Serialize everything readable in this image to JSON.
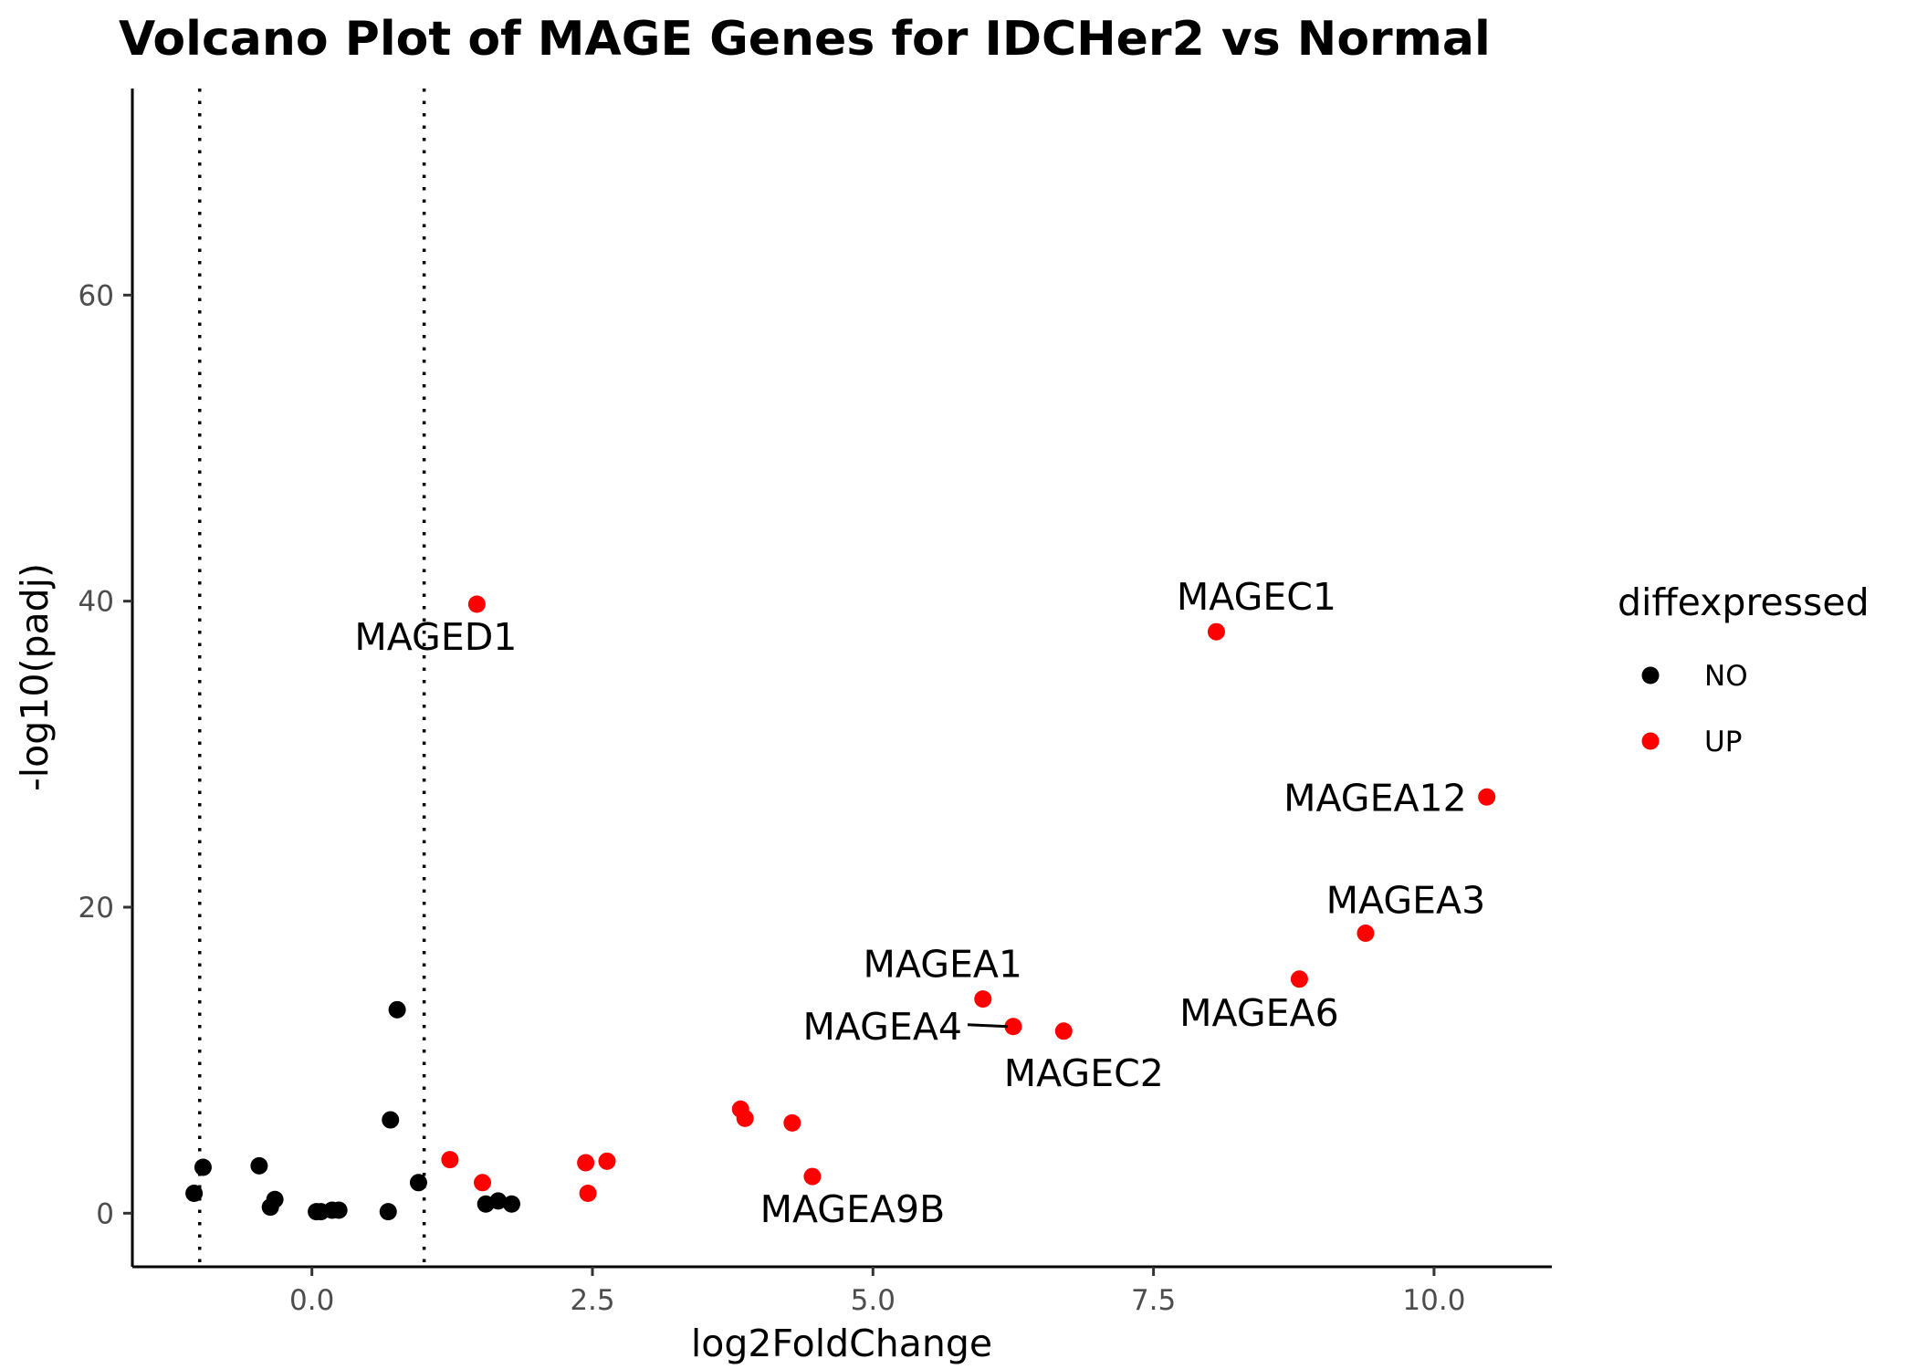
{
  "chart_data": {
    "type": "scatter",
    "title": "Volcano Plot of MAGE Genes for IDCHer2 vs Normal",
    "xlabel": "log2FoldChange",
    "ylabel": "-log10(padj)",
    "xlim": [
      -1.6,
      11.05
    ],
    "ylim": [
      -3.5,
      73.5
    ],
    "x_ticks": [
      0.0,
      2.5,
      5.0,
      7.5,
      10.0
    ],
    "x_tick_labels": [
      "0.0",
      "2.5",
      "5.0",
      "7.5",
      "10.0"
    ],
    "y_ticks": [
      0,
      20,
      40,
      60
    ],
    "y_tick_labels": [
      "0",
      "20",
      "40",
      "60"
    ],
    "vlines": [
      -1,
      1
    ],
    "grid": false,
    "legend": {
      "title": "diffexpressed",
      "position": "right",
      "entries": [
        {
          "label": "NO",
          "color": "#000000"
        },
        {
          "label": "UP",
          "color": "#ff0000"
        }
      ]
    },
    "series": [
      {
        "name": "NO",
        "color": "#000000",
        "points": [
          {
            "x": -1.05,
            "y": 1.3
          },
          {
            "x": -0.97,
            "y": 3.0
          },
          {
            "x": -0.47,
            "y": 3.1
          },
          {
            "x": -0.37,
            "y": 0.4
          },
          {
            "x": -0.33,
            "y": 0.9
          },
          {
            "x": 0.04,
            "y": 0.1
          },
          {
            "x": 0.08,
            "y": 0.1
          },
          {
            "x": 0.18,
            "y": 0.2
          },
          {
            "x": 0.24,
            "y": 0.2
          },
          {
            "x": 0.68,
            "y": 0.1
          },
          {
            "x": 0.7,
            "y": 6.1
          },
          {
            "x": 0.76,
            "y": 13.3
          },
          {
            "x": 0.95,
            "y": 2.0
          },
          {
            "x": 1.55,
            "y": 0.6
          },
          {
            "x": 1.66,
            "y": 0.8
          },
          {
            "x": 1.78,
            "y": 0.6
          }
        ]
      },
      {
        "name": "UP",
        "color": "#ff0000",
        "points": [
          {
            "x": 1.23,
            "y": 3.5,
            "label": ""
          },
          {
            "x": 1.47,
            "y": 39.8,
            "label": "MAGED1"
          },
          {
            "x": 1.52,
            "y": 2.0,
            "label": ""
          },
          {
            "x": 2.44,
            "y": 3.3,
            "label": ""
          },
          {
            "x": 2.46,
            "y": 1.3,
            "label": ""
          },
          {
            "x": 2.63,
            "y": 3.4,
            "label": ""
          },
          {
            "x": 3.82,
            "y": 6.8,
            "label": ""
          },
          {
            "x": 3.86,
            "y": 6.2,
            "label": ""
          },
          {
            "x": 4.28,
            "y": 5.9,
            "label": ""
          },
          {
            "x": 4.46,
            "y": 2.4,
            "label": "MAGEA9B"
          },
          {
            "x": 5.98,
            "y": 14.0,
            "label": "MAGEA1"
          },
          {
            "x": 6.25,
            "y": 12.2,
            "label": "MAGEA4"
          },
          {
            "x": 6.7,
            "y": 11.9,
            "label": "MAGEC2"
          },
          {
            "x": 8.06,
            "y": 38.0,
            "label": "MAGEC1"
          },
          {
            "x": 8.8,
            "y": 15.3,
            "label": "MAGEA6"
          },
          {
            "x": 9.39,
            "y": 18.3,
            "label": "MAGEA3"
          },
          {
            "x": 10.47,
            "y": 27.2,
            "label": "MAGEA12"
          }
        ]
      }
    ]
  }
}
